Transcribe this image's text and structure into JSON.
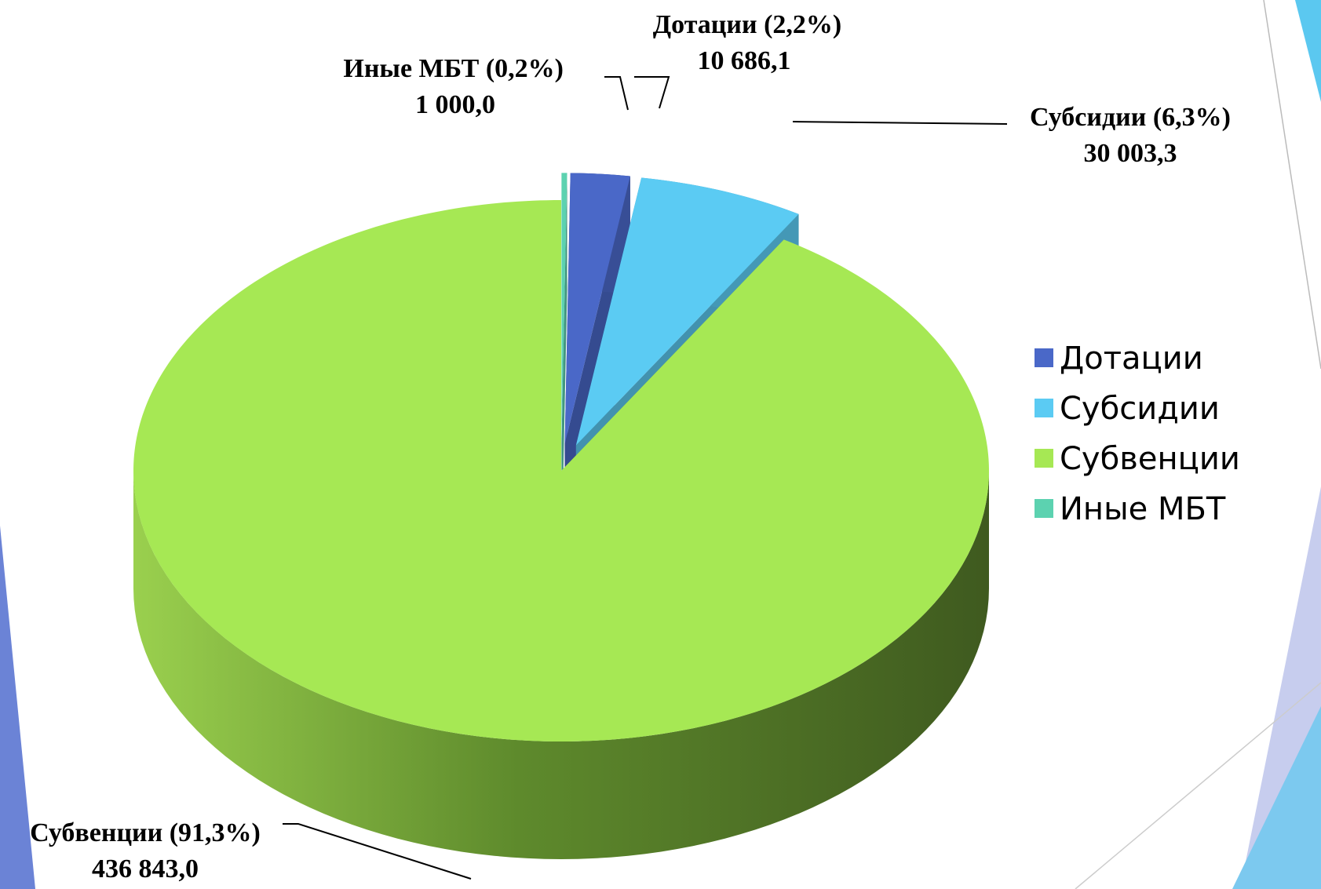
{
  "chart_data": {
    "type": "pie",
    "categories": [
      "Дотации",
      "Субсидии",
      "Субвенции",
      "Иные МБТ"
    ],
    "values": [
      10686.1,
      30003.3,
      436843.0,
      1000.0
    ],
    "value_labels": [
      "10 686,1",
      "30 003,3",
      "436 843,0",
      "1 000,0"
    ],
    "data_labels": [
      "Дотации (2,2%)",
      "Субсидии (6,3%)",
      "Субвенции (91,3%)",
      "Иные МБТ (0,2%)"
    ],
    "colors": [
      "#4a68c8",
      "#5bcbf3",
      "#a6e854",
      "#5cd2b0"
    ],
    "legend": "right"
  }
}
